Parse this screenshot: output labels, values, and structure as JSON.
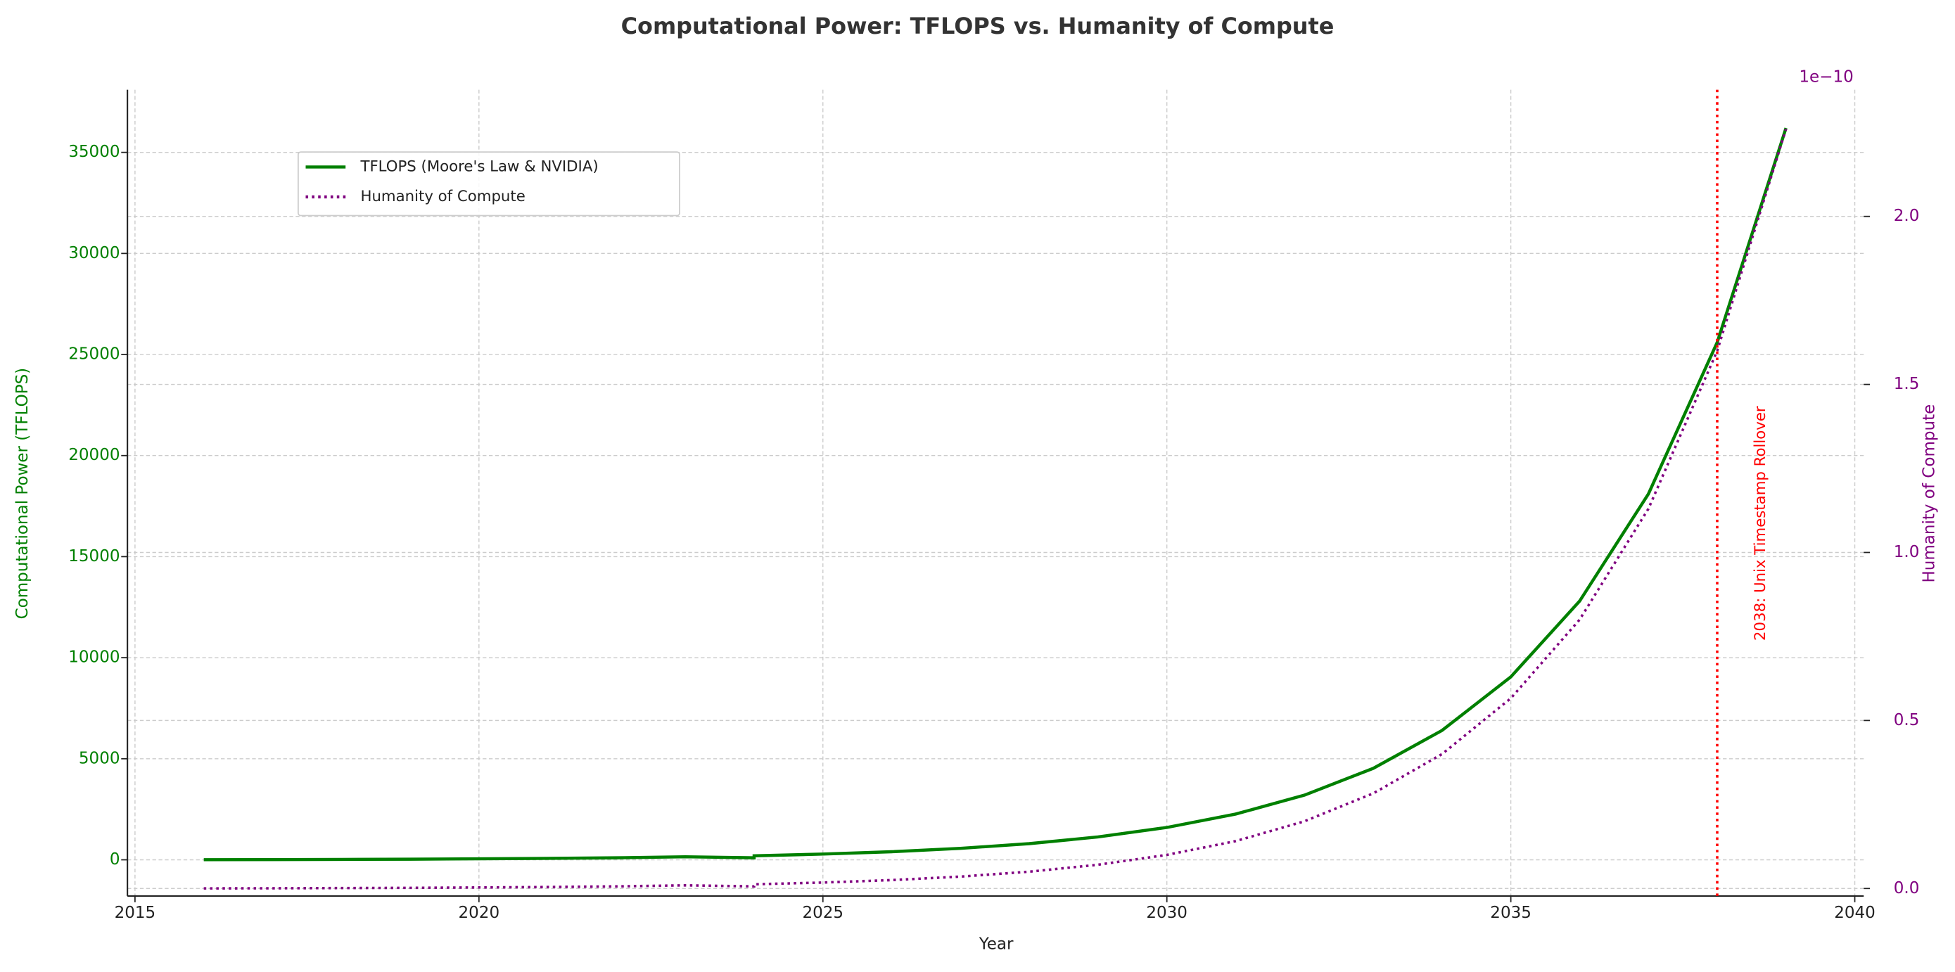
{
  "chart_data": {
    "type": "line",
    "title": "Computational Power: TFLOPS vs. Humanity of Compute",
    "x_label": "Year",
    "y_label": "Computational Power (TFLOPS)",
    "y2_label": "Humanity of Compute",
    "y2_offset_label": "1e−10",
    "x": [
      2016,
      2017,
      2018,
      2019,
      2020,
      2021,
      2022,
      2023,
      2024,
      2024,
      2025,
      2026,
      2027,
      2028,
      2029,
      2030,
      2031,
      2032,
      2033,
      2034,
      2035,
      2036,
      2037,
      2038,
      2039
    ],
    "series": [
      {
        "name": "TFLOPS (Moore's Law & NVIDIA)",
        "color": "#008000",
        "style": "solid",
        "values": [
          5,
          10,
          20,
          30,
          50,
          70,
          100,
          150,
          100,
          200,
          283,
          400,
          566,
          800,
          1131,
          1600,
          2263,
          3200,
          4525,
          6400,
          9051,
          12800,
          18102,
          25600,
          36204
        ]
      },
      {
        "name": "Humanity of Compute",
        "color": "#800080",
        "style": "dotted",
        "axis": "y2",
        "values": [
          3.1e-14,
          6.3e-14,
          1.3e-13,
          1.9e-13,
          3.1e-13,
          4.4e-13,
          6.3e-13,
          9.4e-13,
          6.3e-13,
          1.25e-12,
          1.77e-12,
          2.5e-12,
          3.54e-12,
          5e-12,
          7.07e-12,
          1e-11,
          1.41e-11,
          2e-11,
          2.83e-11,
          4e-11,
          5.66e-11,
          8e-11,
          1.13e-10,
          1.6e-10,
          2.26e-10
        ]
      }
    ],
    "xlim": [
      2014.89,
      2040.13
    ],
    "xticks": [
      2015,
      2020,
      2025,
      2030,
      2035,
      2040
    ],
    "ylim": [
      -1790,
      38100
    ],
    "yticks": [
      0,
      5000,
      10000,
      15000,
      20000,
      25000,
      30000,
      35000
    ],
    "y2lim": [
      -2.23e-12,
      2.377e-10
    ],
    "y2ticks": [
      {
        "value": 0,
        "label": "0.0"
      },
      {
        "value": 5e-11,
        "label": "0.5"
      },
      {
        "value": 1e-10,
        "label": "1.0"
      },
      {
        "value": 1.5e-10,
        "label": "1.5"
      },
      {
        "value": 2e-10,
        "label": "2.0"
      }
    ],
    "vline": {
      "x": 2038,
      "label": "2038: Unix Timestamp Rollover",
      "color": "#ff0000"
    },
    "grid": true,
    "legend": "upper left",
    "y_color": "#008000",
    "y2_color": "#800080"
  }
}
